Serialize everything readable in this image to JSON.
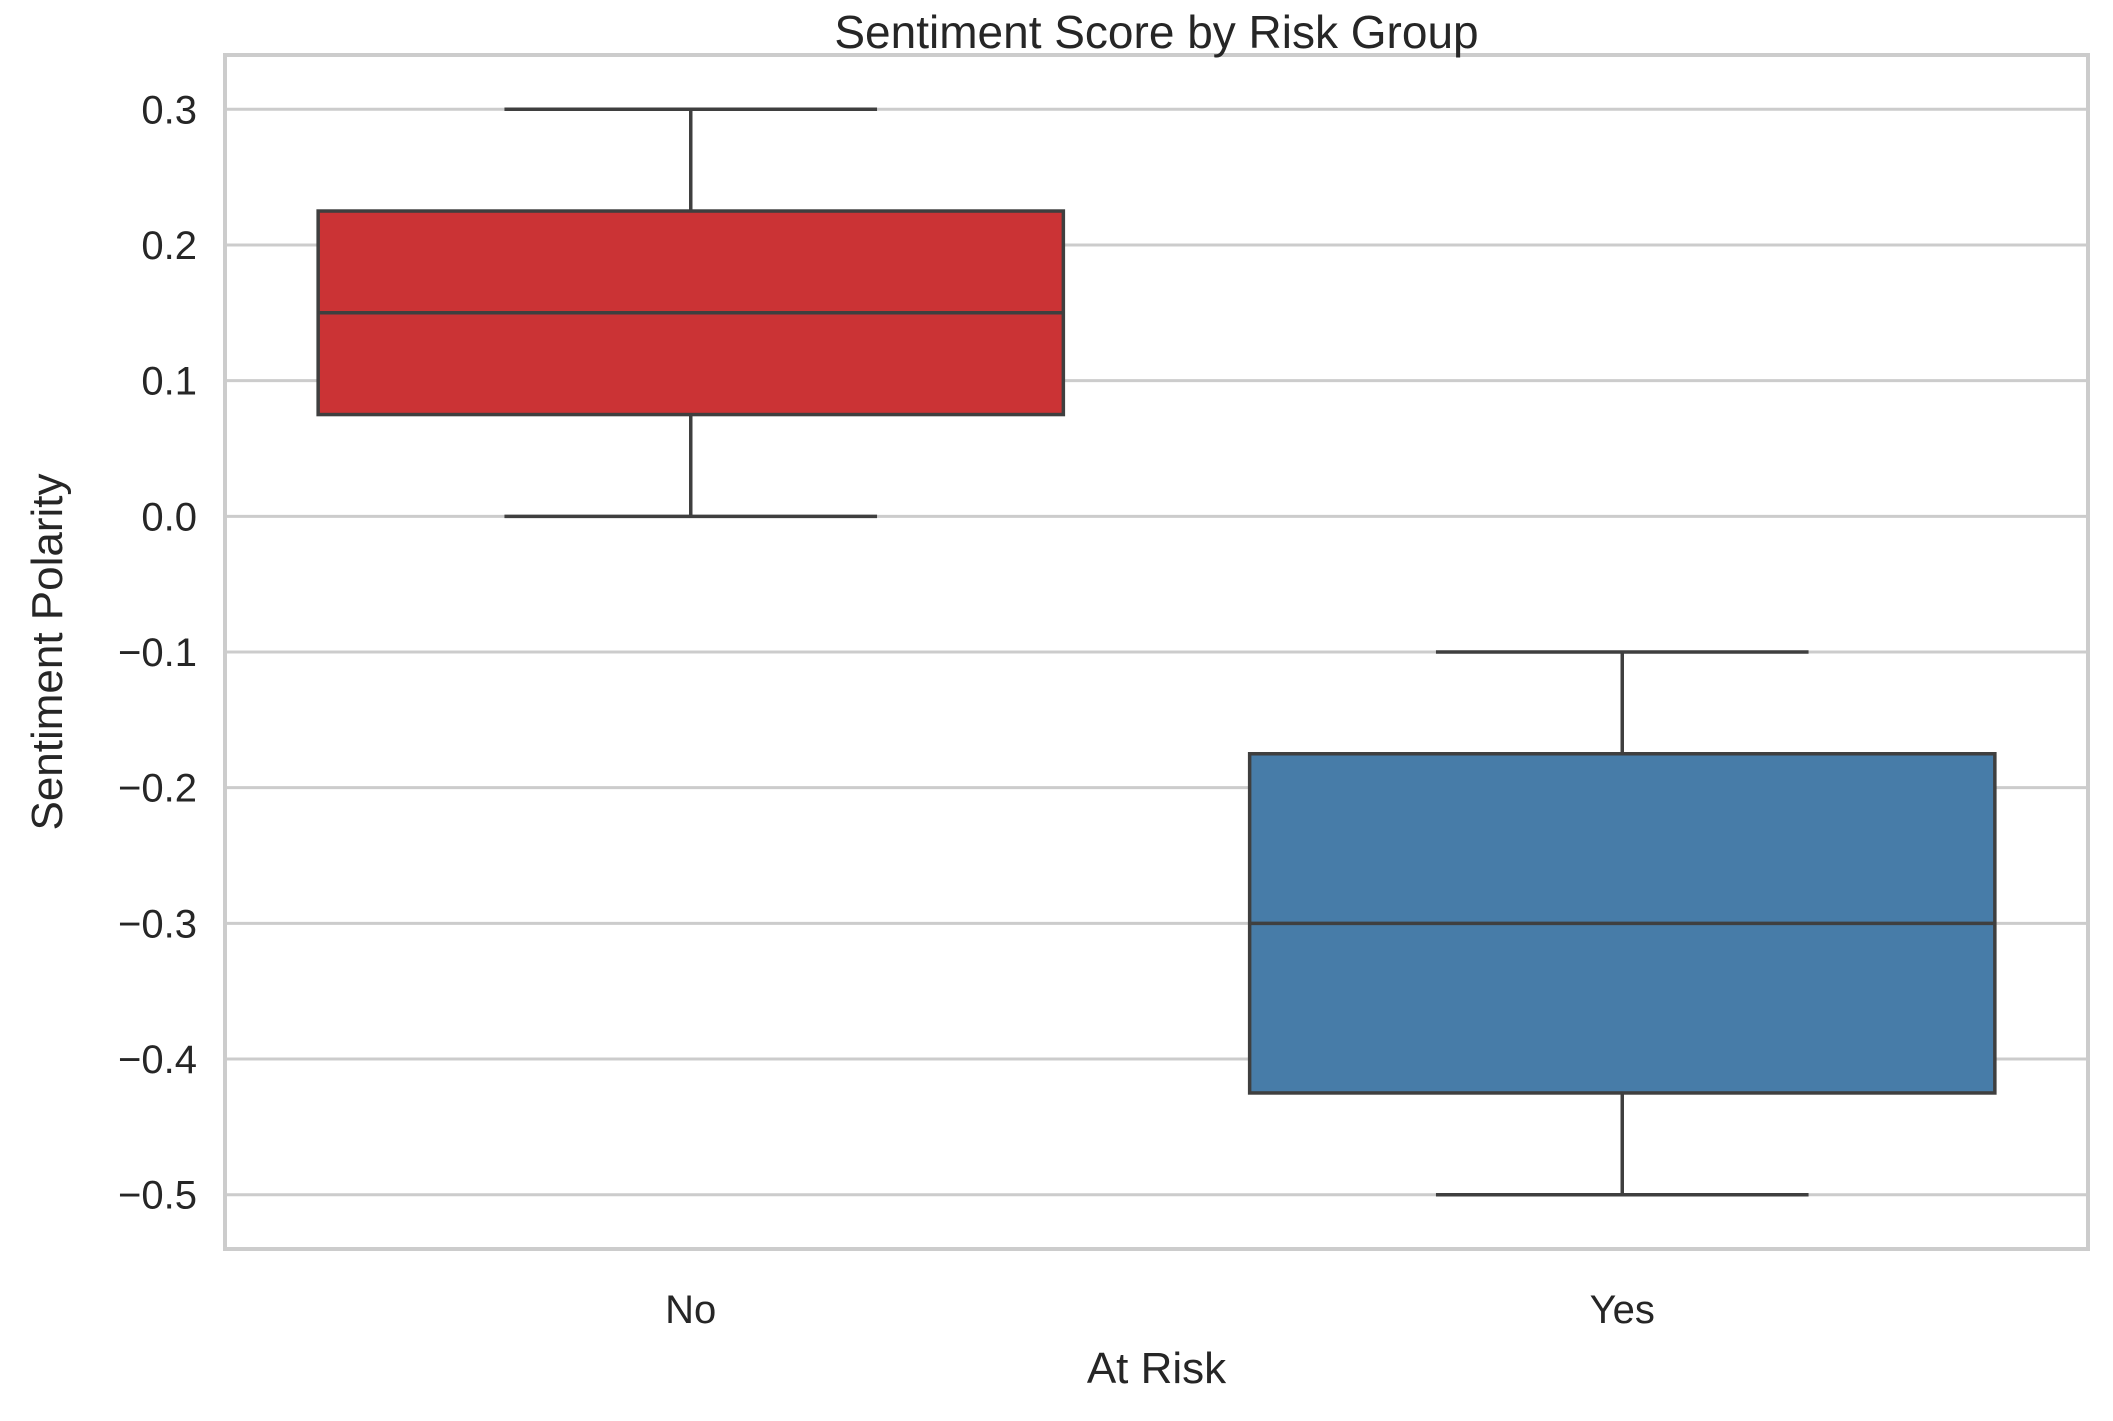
{
  "chart_data": {
    "type": "box",
    "title": "Sentiment Score by Risk Group",
    "xlabel": "At Risk",
    "ylabel": "Sentiment Polarity",
    "ylim": [
      -0.54,
      0.34
    ],
    "yticks": [
      0.3,
      0.2,
      0.1,
      0.0,
      -0.1,
      -0.2,
      -0.3,
      -0.4,
      -0.5
    ],
    "ytick_labels": [
      "0.3",
      "0.2",
      "0.1",
      "0.0",
      "−0.1",
      "−0.2",
      "−0.3",
      "−0.4",
      "−0.5"
    ],
    "grid": true,
    "categories": [
      "No",
      "Yes"
    ],
    "boxes": [
      {
        "category": "No",
        "whisker_low": 0.0,
        "q1": 0.075,
        "median": 0.15,
        "q3": 0.225,
        "whisker_high": 0.3,
        "color": "#cb3335"
      },
      {
        "category": "Yes",
        "whisker_low": -0.5,
        "q1": -0.425,
        "median": -0.3,
        "q3": -0.175,
        "whisker_high": -0.1,
        "color": "#477ca8"
      }
    ]
  }
}
